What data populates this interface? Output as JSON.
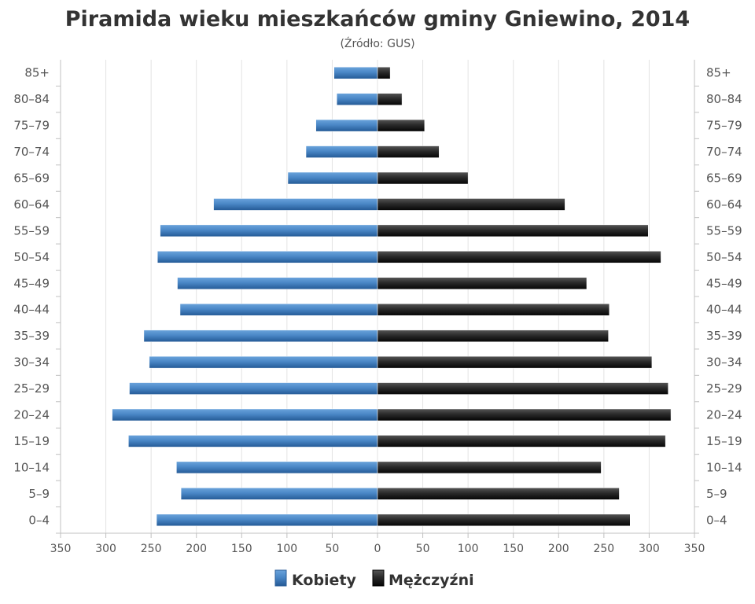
{
  "chart_data": {
    "type": "bar",
    "orientation": "horizontal",
    "layout": "population-pyramid",
    "title": "Piramida wieku mieszkańców gminy Gniewino, 2014",
    "subtitle": "(Źródło: GUS)",
    "categories": [
      "0–4",
      "5–9",
      "10–14",
      "15–19",
      "20–24",
      "25–29",
      "30–34",
      "35–39",
      "40–44",
      "45–49",
      "50–54",
      "55–59",
      "60–64",
      "65–69",
      "70–74",
      "75–79",
      "80–84",
      "85+"
    ],
    "series": [
      {
        "name": "Kobiety",
        "color": "#3a78b8",
        "side": "left",
        "values": [
          244,
          217,
          222,
          275,
          293,
          274,
          252,
          258,
          218,
          221,
          243,
          240,
          181,
          99,
          79,
          68,
          45,
          48
        ]
      },
      {
        "name": "Mężczyźni",
        "color": "#1a1a1a",
        "side": "right",
        "values": [
          279,
          267,
          247,
          318,
          324,
          321,
          303,
          255,
          256,
          231,
          313,
          299,
          207,
          100,
          68,
          52,
          27,
          14
        ]
      }
    ],
    "xlim": [
      -350,
      350
    ],
    "xticks": [
      "350",
      "300",
      "250",
      "200",
      "150",
      "100",
      "50",
      "0",
      "50",
      "100",
      "150",
      "200",
      "250",
      "300",
      "350"
    ],
    "grid": true,
    "legend": "bottom-center"
  }
}
